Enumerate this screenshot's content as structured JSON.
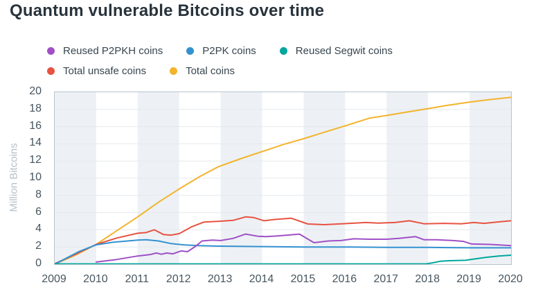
{
  "title": "Quantum vulnerable Bitcoins over time",
  "chart_data": {
    "type": "line",
    "title": "Quantum vulnerable Bitcoins over time",
    "xlabel": "",
    "ylabel": "Million Bitcoins",
    "xlim": [
      2009,
      2020
    ],
    "ylim": [
      0,
      20
    ],
    "xticks": [
      2009,
      2010,
      2011,
      2012,
      2013,
      2014,
      2015,
      2016,
      2017,
      2018,
      2019,
      2020
    ],
    "yticks": [
      0,
      2,
      4,
      6,
      8,
      10,
      12,
      14,
      16,
      18,
      20
    ],
    "grid": "horizontal",
    "legend_position": "top",
    "shaded_year_bands": [
      2009,
      2011,
      2013,
      2015,
      2017,
      2019
    ],
    "band_color": "#edf1f5",
    "grid_color": "#e4e9ed",
    "border_color": "#b6c3cd",
    "series": [
      {
        "name": "Reused P2PKH coins",
        "color": "#a04fc6",
        "points": [
          [
            2010,
            0.25
          ],
          [
            2010.5,
            0.55
          ],
          [
            2011,
            0.95
          ],
          [
            2011.3,
            1.12
          ],
          [
            2011.45,
            1.3
          ],
          [
            2011.57,
            1.15
          ],
          [
            2011.7,
            1.3
          ],
          [
            2011.85,
            1.2
          ],
          [
            2012.05,
            1.55
          ],
          [
            2012.2,
            1.45
          ],
          [
            2012.4,
            2.1
          ],
          [
            2012.55,
            2.7
          ],
          [
            2012.8,
            2.8
          ],
          [
            2013,
            2.75
          ],
          [
            2013.3,
            3.0
          ],
          [
            2013.6,
            3.5
          ],
          [
            2013.9,
            3.25
          ],
          [
            2014.1,
            3.2
          ],
          [
            2014.4,
            3.3
          ],
          [
            2014.9,
            3.5
          ],
          [
            2015.25,
            2.5
          ],
          [
            2015.6,
            2.7
          ],
          [
            2015.9,
            2.75
          ],
          [
            2016.2,
            2.95
          ],
          [
            2016.6,
            2.9
          ],
          [
            2017,
            2.9
          ],
          [
            2017.3,
            3.0
          ],
          [
            2017.7,
            3.2
          ],
          [
            2017.9,
            2.85
          ],
          [
            2018.2,
            2.85
          ],
          [
            2018.6,
            2.75
          ],
          [
            2018.85,
            2.65
          ],
          [
            2019.05,
            2.35
          ],
          [
            2019.5,
            2.3
          ],
          [
            2020,
            2.15
          ]
        ]
      },
      {
        "name": "P2PK coins",
        "color": "#3491d1",
        "points": [
          [
            2009,
            0.0
          ],
          [
            2009.3,
            0.75
          ],
          [
            2009.6,
            1.5
          ],
          [
            2010,
            2.25
          ],
          [
            2010.4,
            2.55
          ],
          [
            2011,
            2.8
          ],
          [
            2011.2,
            2.85
          ],
          [
            2011.5,
            2.7
          ],
          [
            2011.8,
            2.4
          ],
          [
            2012.1,
            2.25
          ],
          [
            2012.5,
            2.15
          ],
          [
            2013,
            2.1
          ],
          [
            2014,
            2.05
          ],
          [
            2015,
            2.0
          ],
          [
            2016,
            2.0
          ],
          [
            2017,
            1.95
          ],
          [
            2018,
            1.95
          ],
          [
            2019,
            1.9
          ],
          [
            2020,
            1.9
          ]
        ]
      },
      {
        "name": "Reused Segwit coins",
        "color": "#00a79d",
        "points": [
          [
            2009,
            0.03
          ],
          [
            2017.95,
            0.03
          ],
          [
            2018.1,
            0.15
          ],
          [
            2018.3,
            0.35
          ],
          [
            2018.5,
            0.4
          ],
          [
            2018.9,
            0.45
          ],
          [
            2019.1,
            0.6
          ],
          [
            2019.4,
            0.8
          ],
          [
            2019.7,
            0.95
          ],
          [
            2020,
            1.05
          ]
        ]
      },
      {
        "name": "Total unsafe coins",
        "color": "#e75241",
        "points": [
          [
            2009,
            0.05
          ],
          [
            2009.5,
            1.15
          ],
          [
            2010,
            2.3
          ],
          [
            2010.5,
            3.05
          ],
          [
            2011,
            3.6
          ],
          [
            2011.2,
            3.68
          ],
          [
            2011.4,
            4.0
          ],
          [
            2011.62,
            3.45
          ],
          [
            2011.8,
            3.38
          ],
          [
            2012,
            3.55
          ],
          [
            2012.3,
            4.35
          ],
          [
            2012.6,
            4.9
          ],
          [
            2013,
            5.0
          ],
          [
            2013.3,
            5.1
          ],
          [
            2013.6,
            5.5
          ],
          [
            2013.8,
            5.42
          ],
          [
            2014.05,
            5.05
          ],
          [
            2014.3,
            5.2
          ],
          [
            2014.7,
            5.35
          ],
          [
            2015.1,
            4.68
          ],
          [
            2015.5,
            4.6
          ],
          [
            2016,
            4.72
          ],
          [
            2016.5,
            4.85
          ],
          [
            2016.8,
            4.78
          ],
          [
            2017.2,
            4.85
          ],
          [
            2017.55,
            5.05
          ],
          [
            2017.9,
            4.7
          ],
          [
            2018.4,
            4.75
          ],
          [
            2018.8,
            4.7
          ],
          [
            2019.1,
            4.85
          ],
          [
            2019.35,
            4.75
          ],
          [
            2019.7,
            4.92
          ],
          [
            2020,
            5.05
          ]
        ]
      },
      {
        "name": "Total coins",
        "color": "#f3b32b",
        "points": [
          [
            2009,
            0.0
          ],
          [
            2009.5,
            1.05
          ],
          [
            2010,
            2.3
          ],
          [
            2010.5,
            3.9
          ],
          [
            2011,
            5.5
          ],
          [
            2011.5,
            7.2
          ],
          [
            2012,
            8.75
          ],
          [
            2012.5,
            10.2
          ],
          [
            2012.95,
            11.35
          ],
          [
            2013.5,
            12.3
          ],
          [
            2014,
            13.1
          ],
          [
            2014.5,
            13.9
          ],
          [
            2015,
            14.6
          ],
          [
            2015.5,
            15.35
          ],
          [
            2016,
            16.1
          ],
          [
            2016.6,
            17.0
          ],
          [
            2017,
            17.3
          ],
          [
            2017.5,
            17.7
          ],
          [
            2018,
            18.1
          ],
          [
            2018.5,
            18.5
          ],
          [
            2019,
            18.85
          ],
          [
            2019.5,
            19.15
          ],
          [
            2020,
            19.4
          ]
        ]
      }
    ]
  }
}
